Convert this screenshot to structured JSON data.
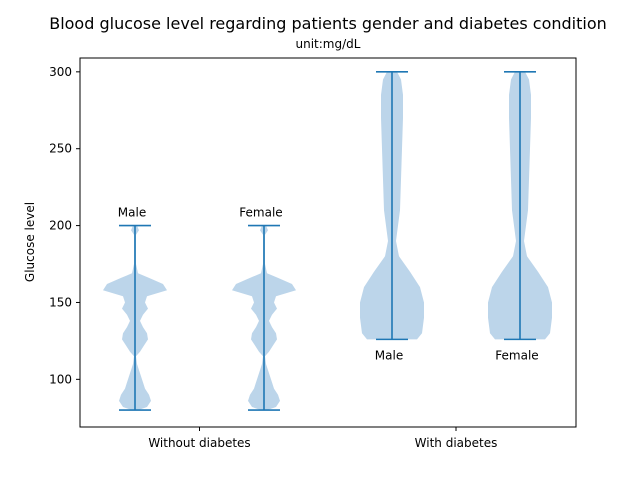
{
  "chart_data": {
    "type": "violin",
    "title": "Blood glucose level regarding patients gender and diabetes condition",
    "subtitle": "unit:mg/dL",
    "xlabel": "",
    "ylabel": "Glucose level",
    "ylim": [
      69,
      309
    ],
    "yticks": [
      100,
      150,
      200,
      250,
      300
    ],
    "categories": [
      "Without diabetes",
      "With diabetes"
    ],
    "grid": false,
    "color": "#1f77b4",
    "fill_color": "#bcd5ea",
    "violins": [
      {
        "group": "Without diabetes",
        "label": "Male",
        "min": 80,
        "max": 200,
        "profile": [
          [
            80,
            3
          ],
          [
            82,
            12
          ],
          [
            86,
            16
          ],
          [
            90,
            14
          ],
          [
            94,
            10
          ],
          [
            98,
            8
          ],
          [
            102,
            6
          ],
          [
            106,
            4
          ],
          [
            110,
            2
          ],
          [
            115,
            1
          ],
          [
            118,
            5
          ],
          [
            122,
            9
          ],
          [
            126,
            13
          ],
          [
            130,
            12
          ],
          [
            134,
            8
          ],
          [
            138,
            5
          ],
          [
            142,
            8
          ],
          [
            146,
            13
          ],
          [
            150,
            10
          ],
          [
            154,
            12
          ],
          [
            158,
            32
          ],
          [
            162,
            28
          ],
          [
            166,
            14
          ],
          [
            169,
            3
          ],
          [
            175,
            1
          ],
          [
            185,
            1
          ],
          [
            194,
            1
          ],
          [
            197,
            4
          ],
          [
            200,
            2
          ]
        ]
      },
      {
        "group": "Without diabetes",
        "label": "Female",
        "min": 80,
        "max": 200,
        "profile": [
          [
            80,
            3
          ],
          [
            82,
            12
          ],
          [
            86,
            16
          ],
          [
            90,
            14
          ],
          [
            94,
            10
          ],
          [
            98,
            8
          ],
          [
            102,
            6
          ],
          [
            106,
            4
          ],
          [
            110,
            2
          ],
          [
            115,
            1
          ],
          [
            118,
            5
          ],
          [
            122,
            9
          ],
          [
            126,
            13
          ],
          [
            130,
            12
          ],
          [
            134,
            8
          ],
          [
            138,
            5
          ],
          [
            142,
            8
          ],
          [
            146,
            13
          ],
          [
            150,
            10
          ],
          [
            154,
            12
          ],
          [
            158,
            32
          ],
          [
            162,
            28
          ],
          [
            166,
            14
          ],
          [
            169,
            3
          ],
          [
            175,
            1
          ],
          [
            185,
            1
          ],
          [
            194,
            1
          ],
          [
            197,
            4
          ],
          [
            200,
            2
          ]
        ]
      },
      {
        "group": "With diabetes",
        "label": "Male",
        "min": 126,
        "max": 300,
        "profile": [
          [
            126,
            25
          ],
          [
            130,
            30
          ],
          [
            140,
            32
          ],
          [
            150,
            32
          ],
          [
            160,
            28
          ],
          [
            170,
            18
          ],
          [
            180,
            7
          ],
          [
            190,
            4
          ],
          [
            200,
            6
          ],
          [
            210,
            8
          ],
          [
            230,
            9
          ],
          [
            250,
            10
          ],
          [
            270,
            11
          ],
          [
            285,
            11
          ],
          [
            295,
            9
          ],
          [
            300,
            5
          ]
        ]
      },
      {
        "group": "With diabetes",
        "label": "Female",
        "min": 126,
        "max": 300,
        "profile": [
          [
            126,
            25
          ],
          [
            130,
            30
          ],
          [
            140,
            32
          ],
          [
            150,
            32
          ],
          [
            160,
            28
          ],
          [
            170,
            18
          ],
          [
            180,
            7
          ],
          [
            190,
            4
          ],
          [
            200,
            6
          ],
          [
            210,
            8
          ],
          [
            230,
            9
          ],
          [
            250,
            10
          ],
          [
            270,
            11
          ],
          [
            285,
            11
          ],
          [
            295,
            9
          ],
          [
            300,
            5
          ]
        ]
      }
    ]
  }
}
